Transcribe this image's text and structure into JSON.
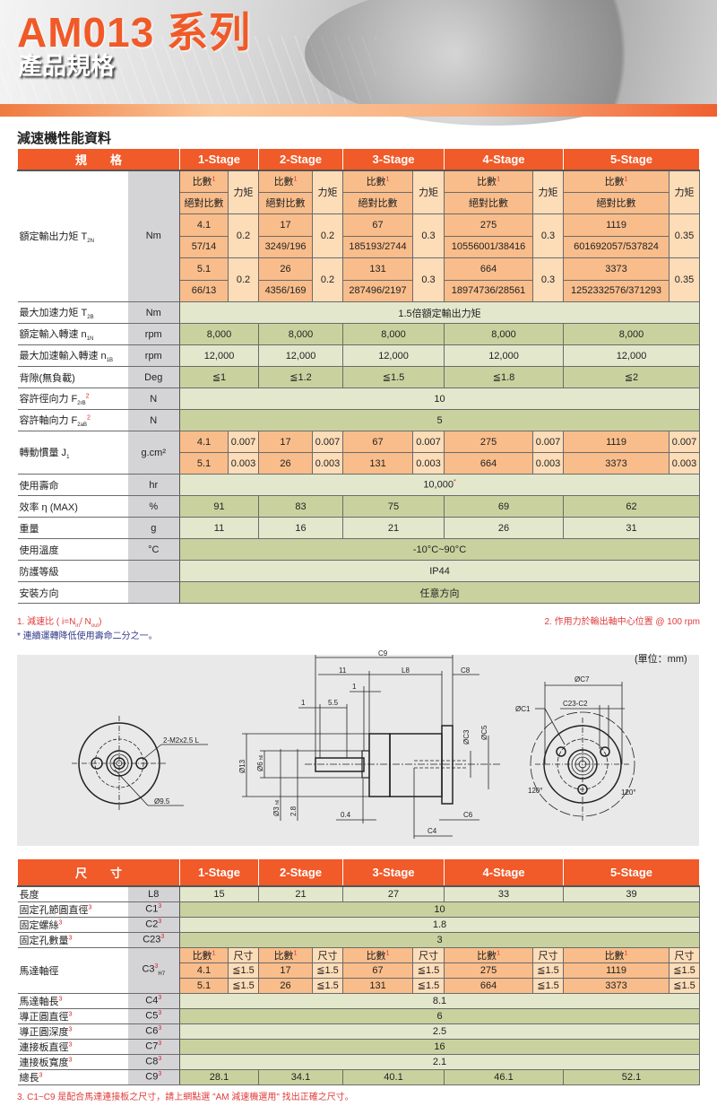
{
  "header": {
    "title": "AM013 系列",
    "subtitle": "產品規格"
  },
  "section_title": "減速機性能資料",
  "performance": {
    "spec_header": "規　　格",
    "stages": [
      "1-Stage",
      "2-Stage",
      "3-Stage",
      "4-Stage",
      "5-Stage"
    ],
    "ratio_label": "比數",
    "ratio_note": "1",
    "abs_ratio_label": "絕對比數",
    "torque_label": "力矩",
    "rated_torque": {
      "label": "額定輸出力矩 T",
      "sub": "2N",
      "unit": "Nm",
      "stages": [
        [
          {
            "ratio": "4.1",
            "abs": "57/14",
            "torque": "0.2"
          },
          {
            "ratio": "5.1",
            "abs": "66/13",
            "torque": "0.2"
          }
        ],
        [
          {
            "ratio": "17",
            "abs": "3249/196",
            "torque": "0.2"
          },
          {
            "ratio": "26",
            "abs": "4356/169",
            "torque": "0.2"
          }
        ],
        [
          {
            "ratio": "67",
            "abs": "185193/2744",
            "torque": "0.3"
          },
          {
            "ratio": "131",
            "abs": "287496/2197",
            "torque": "0.3"
          }
        ],
        [
          {
            "ratio": "275",
            "abs": "10556001/38416",
            "torque": "0.3"
          },
          {
            "ratio": "664",
            "abs": "18974736/28561",
            "torque": "0.3"
          }
        ],
        [
          {
            "ratio": "1119",
            "abs": "601692057/537824",
            "torque": "0.35"
          },
          {
            "ratio": "3373",
            "abs": "1252332576/371293",
            "torque": "0.35"
          }
        ]
      ]
    },
    "rows": [
      {
        "label": "最大加速力矩 T",
        "sub": "2B",
        "unit": "Nm",
        "span": "1.5倍額定輸出力矩",
        "tone": "lt"
      },
      {
        "label": "額定輸入轉速 n",
        "sub": "1N",
        "unit": "rpm",
        "values": [
          "8,000",
          "8,000",
          "8,000",
          "8,000",
          "8,000"
        ],
        "tone": "dk"
      },
      {
        "label": "最大加速輸入轉速 n",
        "sub": "1B",
        "unit": "rpm",
        "values": [
          "12,000",
          "12,000",
          "12,000",
          "12,000",
          "12,000"
        ],
        "tone": "lt"
      },
      {
        "label": "背隙(無負載)",
        "unit": "Deg",
        "values": [
          "≦1",
          "≦1.2",
          "≦1.5",
          "≦1.8",
          "≦2"
        ],
        "tone": "dk"
      },
      {
        "label": "容許徑向力 F",
        "sub": "2rB",
        "sup": "2",
        "unit": "N",
        "span": "10",
        "tone": "lt"
      },
      {
        "label": "容許軸向力 F",
        "sub": "2aB",
        "sup": "2",
        "unit": "N",
        "span": "5",
        "tone": "dk"
      }
    ],
    "inertia": {
      "label": "轉動慣量 J",
      "sub": "1",
      "unit": "g.cm²",
      "stages": [
        [
          [
            "4.1",
            "0.007"
          ],
          [
            "5.1",
            "0.003"
          ]
        ],
        [
          [
            "17",
            "0.007"
          ],
          [
            "26",
            "0.003"
          ]
        ],
        [
          [
            "67",
            "0.007"
          ],
          [
            "131",
            "0.003"
          ]
        ],
        [
          [
            "275",
            "0.007"
          ],
          [
            "664",
            "0.003"
          ]
        ],
        [
          [
            "1119",
            "0.007"
          ],
          [
            "3373",
            "0.003"
          ]
        ]
      ]
    },
    "rows2": [
      {
        "label": "使用壽命",
        "unit": "hr",
        "span": "10,000",
        "spanSup": "*",
        "tone": "lt"
      },
      {
        "label": "效率 η (MAX)",
        "unit": "%",
        "values": [
          "91",
          "83",
          "75",
          "69",
          "62"
        ],
        "tone": "dk"
      },
      {
        "label": "重量",
        "unit": "g",
        "values": [
          "11",
          "16",
          "21",
          "26",
          "31"
        ],
        "tone": "lt"
      },
      {
        "label": "使用溫度",
        "unit": "°C",
        "span": "-10°C~90°C",
        "tone": "dk"
      },
      {
        "label": "防護等級",
        "unit": "",
        "span": "IP44",
        "tone": "lt"
      },
      {
        "label": "安裝方向",
        "unit": "",
        "span": "任意方向",
        "tone": "dk"
      }
    ]
  },
  "notes": {
    "n1": "1. 減速比 ( i=N",
    "n1a": "in",
    "n1b": "/ N",
    "n1c": "out",
    "n1d": ")",
    "n2": "2. 作用力於輸出軸中心位置 @ 100 rpm",
    "n3": "* 連續運轉降低使用壽命二分之一。",
    "n4": "3. C1~C9 是配合馬達連接板之尺寸，請上網點選 \"AM 減速機選用\" 找出正確之尺寸。"
  },
  "diagram": {
    "unit": "(單位：mm)",
    "front_left": {
      "thread": "2-M2x2.5 L",
      "dia": "Ø9.5"
    },
    "side": {
      "c9": "C9",
      "d11": "11",
      "l8": "L8",
      "c8": "C8",
      "d1a": "1",
      "d55": "5.5",
      "d1b": "1",
      "c3": "ØC3",
      "c5": "ØC5",
      "d13": "Ø13",
      "d6": "Ø6",
      "d6tol": "h6",
      "d3": "Ø3",
      "d3tol": "h6",
      "d28": "2.8",
      "d04": "0.4",
      "c6": "C6",
      "c4": "C4"
    },
    "front_right": {
      "c7": "ØC7",
      "c23": "C23-C2",
      "c1": "ØC1",
      "a1": "120°",
      "a2": "120°"
    }
  },
  "dimensions": {
    "header": "尺　　寸",
    "stages": [
      "1-Stage",
      "2-Stage",
      "3-Stage",
      "4-Stage",
      "5-Stage"
    ],
    "rows_a": [
      {
        "label": "長度",
        "code": "L8",
        "values": [
          "15",
          "21",
          "27",
          "33",
          "39"
        ],
        "tone": "lt"
      },
      {
        "label": "固定孔節圓直徑",
        "code": "C1",
        "sup": "3",
        "span": "10",
        "tone": "dk"
      },
      {
        "label": "固定螺絲",
        "code": "C2",
        "sup": "3",
        "span": "1.8",
        "tone": "lt"
      },
      {
        "label": "固定孔數量",
        "code": "C23",
        "sup": "3",
        "span": "3",
        "tone": "dk"
      }
    ],
    "shaft": {
      "label": "馬達軸徑",
      "code": "C3",
      "sup": "3",
      "sub": "H7",
      "ratio_label": "比數",
      "size_label": "尺寸",
      "stages": [
        [
          [
            "4.1",
            "≦1.5"
          ],
          [
            "5.1",
            "≦1.5"
          ]
        ],
        [
          [
            "17",
            "≦1.5"
          ],
          [
            "26",
            "≦1.5"
          ]
        ],
        [
          [
            "67",
            "≦1.5"
          ],
          [
            "131",
            "≦1.5"
          ]
        ],
        [
          [
            "275",
            "≦1.5"
          ],
          [
            "664",
            "≦1.5"
          ]
        ],
        [
          [
            "1119",
            "≦1.5"
          ],
          [
            "3373",
            "≦1.5"
          ]
        ]
      ]
    },
    "rows_b": [
      {
        "label": "馬達軸長",
        "code": "C4",
        "sup": "3",
        "span": "8.1",
        "tone": "lt"
      },
      {
        "label": "導正圓直徑",
        "code": "C5",
        "sup": "3",
        "span": "6",
        "tone": "dk"
      },
      {
        "label": "導正圓深度",
        "code": "C6",
        "sup": "3",
        "span": "2.5",
        "tone": "lt"
      },
      {
        "label": "連接板直徑",
        "code": "C7",
        "sup": "3",
        "span": "16",
        "tone": "dk"
      },
      {
        "label": "連接板寬度",
        "code": "C8",
        "sup": "3",
        "span": "2.1",
        "tone": "lt"
      },
      {
        "label": "總長",
        "code": "C9",
        "sup": "3",
        "values": [
          "28.1",
          "34.1",
          "40.1",
          "46.1",
          "52.1"
        ],
        "tone": "dk"
      }
    ]
  },
  "colors": {
    "brand_orange": "#f15a29",
    "ratio_cell": "#f9bd8b",
    "torque_cell": "#fddcb8",
    "row_light": "#e3e8cd",
    "row_dark": "#c9d29f",
    "unit_col": "#d4d4d6"
  }
}
